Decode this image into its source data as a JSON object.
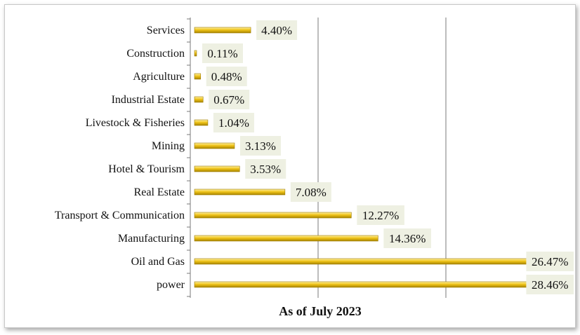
{
  "chart_data": {
    "type": "bar",
    "orientation": "horizontal",
    "categories": [
      "Services",
      "Construction",
      "Agriculture",
      "Industrial Estate",
      "Livestock & Fisheries",
      "Mining",
      "Hotel & Tourism",
      "Real Estate",
      "Transport & Communication",
      "Manufacturing",
      "Oil and Gas",
      "power"
    ],
    "values": [
      4.4,
      0.11,
      0.48,
      0.67,
      1.04,
      3.13,
      3.53,
      7.08,
      12.27,
      14.36,
      26.47,
      28.46
    ],
    "data_labels": [
      "4.40%",
      "0.11%",
      "0.48%",
      "0.67%",
      "1.04%",
      "3.13%",
      "3.53%",
      "7.08%",
      "12.27%",
      "14.36%",
      "26.47%",
      "28.46%"
    ],
    "xlabel": "As of July 2023",
    "ylabel": "",
    "xlim": [
      0,
      30
    ],
    "grid": true,
    "bar_color": "#f0c419",
    "label_background": "#eef0e2"
  }
}
